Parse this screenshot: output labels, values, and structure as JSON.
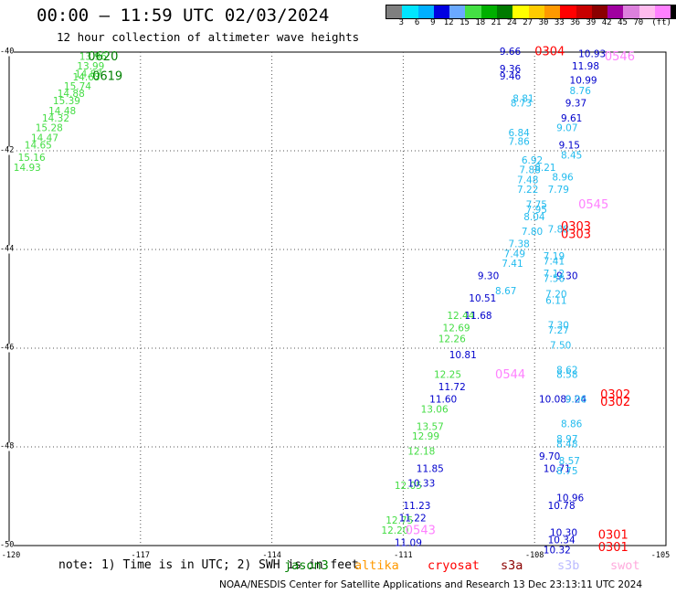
{
  "header": {
    "title": "00:00 — 11:59 UTC 02/03/2024",
    "subtitle": "12 hour collection of altimeter wave heights"
  },
  "colorbar": {
    "colors": [
      "#7f7f7f",
      "#00e5ff",
      "#00b0ff",
      "#0000e0",
      "#6aa9ff",
      "#44e044",
      "#00b000",
      "#007a00",
      "#ffff00",
      "#ffcc00",
      "#ff9900",
      "#ff0000",
      "#c80000",
      "#8b0000",
      "#a000a0",
      "#dd80dd",
      "#ffbbee",
      "#ff80ff",
      "#000000"
    ],
    "labels": [
      "3",
      "6",
      "9",
      "12",
      "15",
      "18",
      "21",
      "24",
      "27",
      "30",
      "33",
      "36",
      "39",
      "42",
      "45",
      "70",
      "(ft)"
    ]
  },
  "axes": {
    "y_ticks": [
      "-40",
      "-42",
      "-44",
      "-46",
      "-48",
      "-50"
    ],
    "x_ticks": [
      "-120",
      "-117",
      "-114",
      "-111",
      "-108",
      "-105"
    ]
  },
  "chart_data": {
    "type": "scatter",
    "title": "00:00 — 11:59 UTC 02/03/2024",
    "subtitle": "12 hour collection of altimeter wave heights",
    "xlabel": "",
    "ylabel": "",
    "xlim": [
      -120,
      -105
    ],
    "ylim": [
      -50,
      -40
    ],
    "grid": "dotted",
    "units": "ft",
    "series": [
      {
        "name": "jason3",
        "color_hint": "green",
        "points": [
          {
            "lon": -118.4,
            "lat": -40.1,
            "v": "13.96"
          },
          {
            "lon": -118.45,
            "lat": -40.3,
            "v": "13.99"
          },
          {
            "lon": -118.5,
            "lat": -40.45,
            "v": "14.87"
          },
          {
            "lon": -118.55,
            "lat": -40.52,
            "v": "14.63"
          },
          {
            "lon": -118.75,
            "lat": -40.7,
            "v": "15.74"
          },
          {
            "lon": -118.9,
            "lat": -40.85,
            "v": "14.88"
          },
          {
            "lon": -119.0,
            "lat": -41.0,
            "v": "15.39"
          },
          {
            "lon": -119.1,
            "lat": -41.2,
            "v": "14.48"
          },
          {
            "lon": -119.25,
            "lat": -41.35,
            "v": "14.32"
          },
          {
            "lon": -119.4,
            "lat": -41.55,
            "v": "15.28"
          },
          {
            "lon": -119.5,
            "lat": -41.75,
            "v": "14.47"
          },
          {
            "lon": -119.65,
            "lat": -41.9,
            "v": "14.65"
          },
          {
            "lon": -119.8,
            "lat": -42.15,
            "v": "15.16"
          },
          {
            "lon": -119.9,
            "lat": -42.35,
            "v": "14.93"
          },
          {
            "lon": -110.0,
            "lat": -45.35,
            "v": "12.44"
          },
          {
            "lon": -110.1,
            "lat": -45.6,
            "v": "12.69"
          },
          {
            "lon": -110.2,
            "lat": -45.82,
            "v": "12.26"
          },
          {
            "lon": -110.3,
            "lat": -46.55,
            "v": "12.25"
          },
          {
            "lon": -110.6,
            "lat": -47.25,
            "v": "13.06"
          },
          {
            "lon": -110.7,
            "lat": -47.6,
            "v": "13.57"
          },
          {
            "lon": -110.8,
            "lat": -47.8,
            "v": "12.99"
          },
          {
            "lon": -110.9,
            "lat": -48.1,
            "v": "12.18"
          },
          {
            "lon": -111.2,
            "lat": -48.8,
            "v": "12.05"
          },
          {
            "lon": -111.4,
            "lat": -49.5,
            "v": "12.75"
          },
          {
            "lon": -111.5,
            "lat": -49.7,
            "v": "12.20"
          }
        ]
      },
      {
        "name": "jason3",
        "color_hint": "blue",
        "points": [
          {
            "lon": -108.8,
            "lat": -40.0,
            "v": "9.66"
          },
          {
            "lon": -108.8,
            "lat": -40.35,
            "v": "9.36"
          },
          {
            "lon": -108.8,
            "lat": -40.5,
            "v": "9.46"
          },
          {
            "lon": -109.3,
            "lat": -44.55,
            "v": "9.30"
          },
          {
            "lon": -109.5,
            "lat": -45.0,
            "v": "10.51"
          },
          {
            "lon": -109.6,
            "lat": -45.35,
            "v": "11.68"
          },
          {
            "lon": -109.95,
            "lat": -46.15,
            "v": "10.81"
          },
          {
            "lon": -110.2,
            "lat": -46.8,
            "v": "11.72"
          },
          {
            "lon": -110.4,
            "lat": -47.05,
            "v": "11.60"
          },
          {
            "lon": -110.7,
            "lat": -48.45,
            "v": "11.85"
          },
          {
            "lon": -110.9,
            "lat": -48.75,
            "v": "10.33"
          },
          {
            "lon": -111.0,
            "lat": -49.2,
            "v": "11.23"
          },
          {
            "lon": -111.1,
            "lat": -49.45,
            "v": "11.22"
          },
          {
            "lon": -111.2,
            "lat": -49.95,
            "v": "11.09"
          },
          {
            "lon": -107.0,
            "lat": -40.05,
            "v": "10.93"
          },
          {
            "lon": -107.15,
            "lat": -40.3,
            "v": "11.98"
          },
          {
            "lon": -107.2,
            "lat": -40.58,
            "v": "10.99"
          },
          {
            "lon": -107.3,
            "lat": -41.05,
            "v": "9.37"
          },
          {
            "lon": -107.4,
            "lat": -41.35,
            "v": "9.61"
          },
          {
            "lon": -107.45,
            "lat": -41.9,
            "v": "9.15"
          },
          {
            "lon": -107.5,
            "lat": -44.55,
            "v": "9.30"
          },
          {
            "lon": -107.3,
            "lat": -47.05,
            "v": "9.24"
          },
          {
            "lon": -107.9,
            "lat": -48.2,
            "v": "9.70"
          },
          {
            "lon": -107.8,
            "lat": -48.45,
            "v": "10.71"
          },
          {
            "lon": -107.5,
            "lat": -49.05,
            "v": "10.96"
          },
          {
            "lon": -107.7,
            "lat": -49.2,
            "v": "10.78"
          },
          {
            "lon": -107.65,
            "lat": -49.75,
            "v": "10.30"
          },
          {
            "lon": -107.7,
            "lat": -49.9,
            "v": "10.34"
          },
          {
            "lon": -107.8,
            "lat": -50.1,
            "v": "10.32"
          },
          {
            "lon": -107.9,
            "lat": -47.05,
            "v": "10.08"
          }
        ]
      },
      {
        "name": "jason3",
        "color_hint": "cyan",
        "points": [
          {
            "lon": -108.5,
            "lat": -40.95,
            "v": "8.81"
          },
          {
            "lon": -108.55,
            "lat": -41.05,
            "v": "8.73"
          },
          {
            "lon": -108.6,
            "lat": -41.65,
            "v": "6.84"
          },
          {
            "lon": -108.6,
            "lat": -41.82,
            "v": "7.86"
          },
          {
            "lon": -108.3,
            "lat": -42.2,
            "v": "6.92"
          },
          {
            "lon": -108.35,
            "lat": -42.4,
            "v": "7.88"
          },
          {
            "lon": -108.0,
            "lat": -42.35,
            "v": "8.21"
          },
          {
            "lon": -108.4,
            "lat": -42.6,
            "v": "7.48"
          },
          {
            "lon": -108.4,
            "lat": -42.8,
            "v": "7.22"
          },
          {
            "lon": -108.2,
            "lat": -43.1,
            "v": "7.75"
          },
          {
            "lon": -108.2,
            "lat": -43.2,
            "v": "7.95"
          },
          {
            "lon": -108.25,
            "lat": -43.35,
            "v": "8.04"
          },
          {
            "lon": -108.3,
            "lat": -43.65,
            "v": "7.80"
          },
          {
            "lon": -108.6,
            "lat": -43.9,
            "v": "7.38"
          },
          {
            "lon": -108.7,
            "lat": -44.1,
            "v": "7.49"
          },
          {
            "lon": -108.75,
            "lat": -44.3,
            "v": "7.41"
          },
          {
            "lon": -108.9,
            "lat": -44.85,
            "v": "8.67"
          },
          {
            "lon": -107.2,
            "lat": -40.8,
            "v": "8.76"
          },
          {
            "lon": -107.5,
            "lat": -41.55,
            "v": "9.07"
          },
          {
            "lon": -107.4,
            "lat": -42.1,
            "v": "8.45"
          },
          {
            "lon": -107.6,
            "lat": -42.55,
            "v": "8.96"
          },
          {
            "lon": -107.7,
            "lat": -42.8,
            "v": "7.79"
          },
          {
            "lon": -107.7,
            "lat": -43.6,
            "v": "7.88"
          },
          {
            "lon": -107.8,
            "lat": -44.15,
            "v": "7.19"
          },
          {
            "lon": -107.8,
            "lat": -44.25,
            "v": "7.41"
          },
          {
            "lon": -107.8,
            "lat": -44.5,
            "v": "7.12"
          },
          {
            "lon": -107.8,
            "lat": -44.6,
            "v": "7.56"
          },
          {
            "lon": -107.75,
            "lat": -44.92,
            "v": "7.20"
          },
          {
            "lon": -107.75,
            "lat": -45.05,
            "v": "6.11"
          },
          {
            "lon": -107.7,
            "lat": -45.55,
            "v": "7.30"
          },
          {
            "lon": -107.7,
            "lat": -45.65,
            "v": "7.27"
          },
          {
            "lon": -107.65,
            "lat": -45.95,
            "v": "7.50"
          },
          {
            "lon": -107.5,
            "lat": -46.45,
            "v": "8.62"
          },
          {
            "lon": -107.5,
            "lat": -46.55,
            "v": "8.58"
          },
          {
            "lon": -107.4,
            "lat": -47.55,
            "v": "8.86"
          },
          {
            "lon": -107.5,
            "lat": -47.85,
            "v": "8.97"
          },
          {
            "lon": -107.5,
            "lat": -47.95,
            "v": "8.48"
          },
          {
            "lon": -107.45,
            "lat": -48.3,
            "v": "8.57"
          },
          {
            "lon": -107.5,
            "lat": -48.5,
            "v": "8.75"
          },
          {
            "lon": -107.3,
            "lat": -47.05,
            "v": "9.06"
          }
        ]
      }
    ],
    "pass_labels": [
      {
        "text": "0620",
        "color": "#008000",
        "lon": -118.2,
        "lat": -40.1
      },
      {
        "text": "0619",
        "color": "#008000",
        "lon": -118.1,
        "lat": -40.5
      },
      {
        "text": "0304",
        "color": "#ff0000",
        "lon": -108.0,
        "lat": -40.0
      },
      {
        "text": "0546",
        "color": "#ff80ff",
        "lon": -106.4,
        "lat": -40.1
      },
      {
        "text": "0545",
        "color": "#ff80ff",
        "lon": -107.0,
        "lat": -43.1
      },
      {
        "text": "0303",
        "color": "#ff0000",
        "lon": -107.4,
        "lat": -43.55
      },
      {
        "text": "0303",
        "color": "#ff0000",
        "lon": -107.4,
        "lat": -43.7
      },
      {
        "text": "0544",
        "color": "#ff80ff",
        "lon": -108.9,
        "lat": -46.55
      },
      {
        "text": "0302",
        "color": "#ff0000",
        "lon": -106.5,
        "lat": -46.95
      },
      {
        "text": "0302",
        "color": "#ff0000",
        "lon": -106.5,
        "lat": -47.1
      },
      {
        "text": "0543",
        "color": "#ff80ff",
        "lon": -110.95,
        "lat": -49.7
      },
      {
        "text": "0301",
        "color": "#ff0000",
        "lon": -106.55,
        "lat": -49.8
      },
      {
        "text": "0301",
        "color": "#ff0000",
        "lon": -106.55,
        "lat": -50.05
      }
    ]
  },
  "footer": {
    "note": "note:  1) Time is in UTC; 2) SWH is in feet",
    "legend": [
      {
        "label": "jason3",
        "color": "#008000"
      },
      {
        "label": "altika",
        "color": "#ff9900"
      },
      {
        "label": "cryosat",
        "color": "#ff0000"
      },
      {
        "label": "s3a",
        "color": "#8b0000"
      },
      {
        "label": "s3b",
        "color": "#bbbbff"
      },
      {
        "label": "swot",
        "color": "#ffaadd"
      }
    ],
    "credit": "NOAA/NESDIS Center for Satellite Applications and Research     13 Dec 23:13:11 UTC 2024"
  },
  "value_colors": {
    "green": "#44dd44",
    "blue": "#0000cc",
    "cyan": "#22bbee"
  }
}
